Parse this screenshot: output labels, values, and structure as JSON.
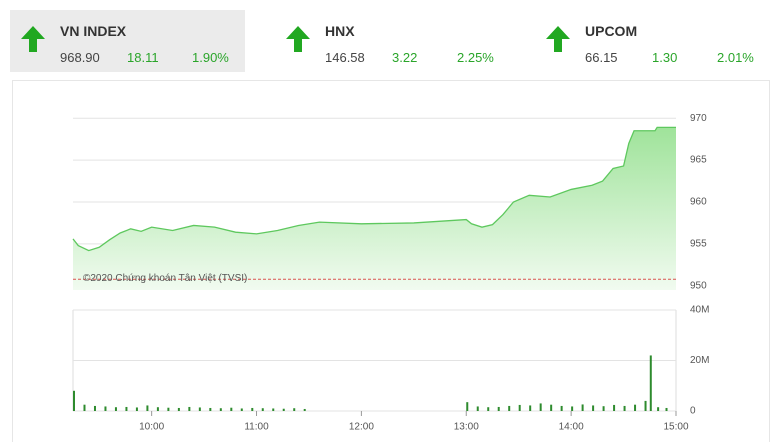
{
  "indices": [
    {
      "name": "VN INDEX",
      "value": "968.90",
      "change": "18.11",
      "percent": "1.90%"
    },
    {
      "name": "HNX",
      "value": "146.58",
      "change": "3.22",
      "percent": "2.25%"
    },
    {
      "name": "UPCOM",
      "value": "66.15",
      "change": "1.30",
      "percent": "2.01%"
    }
  ],
  "chart_data": [
    {
      "type": "area",
      "annotation": "©2020 Chứng khoán Tân Việt (TVSI)",
      "x": [
        9.25,
        9.3,
        9.4,
        9.5,
        9.6,
        9.7,
        9.8,
        9.9,
        10.0,
        10.2,
        10.4,
        10.6,
        10.8,
        11.0,
        11.2,
        11.4,
        11.6,
        12.0,
        12.5,
        13.0,
        13.05,
        13.15,
        13.25,
        13.35,
        13.45,
        13.6,
        13.8,
        14.0,
        14.2,
        14.3,
        14.4,
        14.5,
        14.55,
        14.6,
        14.8,
        14.82,
        15.0
      ],
      "values": [
        955.6,
        954.8,
        954.2,
        954.6,
        955.5,
        956.3,
        956.8,
        956.5,
        957.0,
        956.6,
        957.2,
        957.0,
        956.4,
        956.2,
        956.6,
        957.2,
        957.6,
        957.4,
        957.5,
        957.9,
        957.4,
        957.0,
        957.3,
        958.5,
        960.0,
        960.8,
        960.6,
        961.5,
        962.0,
        962.5,
        964.0,
        964.3,
        967.0,
        968.5,
        968.5,
        968.9,
        968.9
      ],
      "color": "#5ec85e",
      "reference_line": 950.79,
      "reference_color": "#d9534f",
      "xlim": [
        9.25,
        15
      ],
      "ylim": [
        949.5,
        970.5
      ],
      "yticks": [
        950,
        955,
        960,
        965,
        970
      ],
      "grid": true
    },
    {
      "type": "bar",
      "x": [
        9.25,
        9.35,
        9.45,
        9.55,
        9.65,
        9.75,
        9.85,
        9.95,
        10.05,
        10.15,
        10.25,
        10.35,
        10.45,
        10.55,
        10.65,
        10.75,
        10.85,
        10.95,
        11.05,
        11.15,
        11.25,
        11.35,
        11.45,
        13.0,
        13.1,
        13.2,
        13.3,
        13.4,
        13.5,
        13.6,
        13.7,
        13.8,
        13.9,
        14.0,
        14.1,
        14.2,
        14.3,
        14.4,
        14.5,
        14.6,
        14.7,
        14.75,
        14.82,
        14.9
      ],
      "values": [
        8,
        2.5,
        2,
        1.8,
        1.5,
        1.6,
        1.4,
        2.2,
        1.5,
        1.3,
        1.2,
        1.6,
        1.4,
        1.2,
        1.1,
        1.3,
        1.0,
        1.2,
        1.1,
        1.0,
        0.9,
        1.1,
        0.8,
        3.5,
        1.8,
        1.5,
        1.6,
        2.0,
        2.4,
        2.2,
        3.0,
        2.5,
        2.0,
        1.8,
        2.6,
        2.2,
        1.9,
        2.4,
        2.0,
        2.5,
        4.0,
        22,
        1.5,
        1.2
      ],
      "color": "#2e8b2e",
      "xlim": [
        9.25,
        15
      ],
      "ylim": [
        0,
        40
      ],
      "yticks": [
        0,
        {
          "value": 20,
          "label": "20M"
        },
        {
          "value": 40,
          "label": "40M"
        }
      ],
      "xticks": [
        {
          "value": 10,
          "label": "10:00"
        },
        {
          "value": 11,
          "label": "11:00"
        },
        {
          "value": 12,
          "label": "12:00"
        },
        {
          "value": 13,
          "label": "13:00"
        },
        {
          "value": 14,
          "label": "14:00"
        },
        {
          "value": 15,
          "label": "15:00"
        }
      ]
    }
  ]
}
